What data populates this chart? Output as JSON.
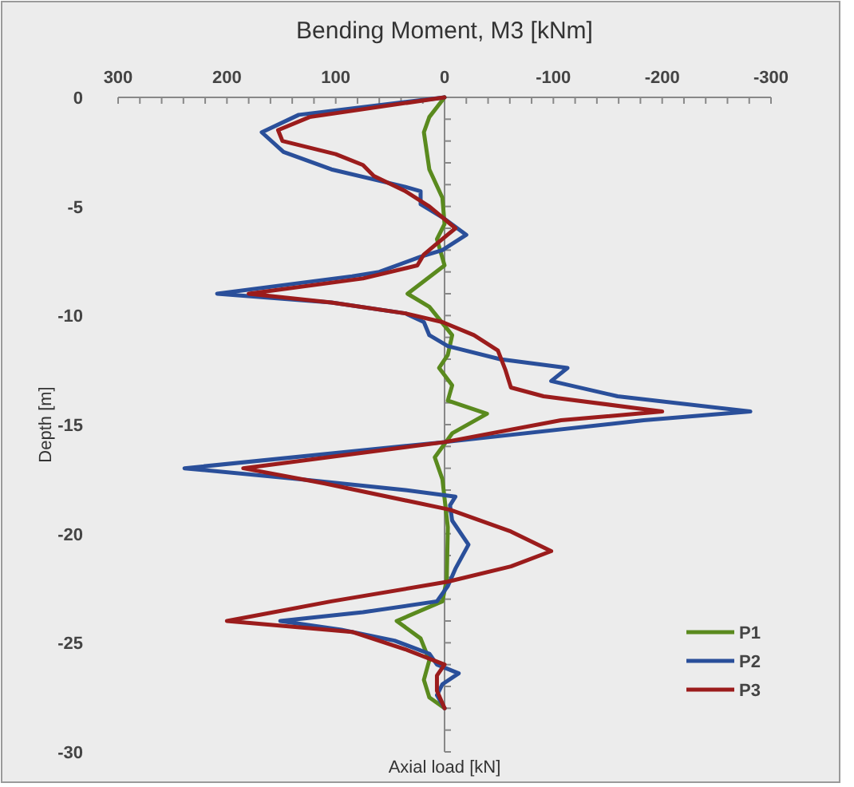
{
  "chart_data": {
    "type": "line",
    "title": "Bending Moment, M3 [kNm]",
    "xlabel": "Axial load [kN]",
    "ylabel": "Depth [m]",
    "xlim": [
      300,
      -300
    ],
    "xticks": [
      300,
      {
        "value": 280,
        "label": null
      },
      {
        "value": 260,
        "label": null
      },
      {
        "value": 240,
        "label": null
      },
      {
        "value": 220,
        "label": null
      },
      200,
      {
        "value": 180,
        "label": null
      },
      {
        "value": 160,
        "label": null
      },
      {
        "value": 140,
        "label": null
      },
      {
        "value": 120,
        "label": null
      },
      100,
      {
        "value": 80,
        "label": null
      },
      {
        "value": 60,
        "label": null
      },
      {
        "value": 40,
        "label": null
      },
      {
        "value": 20,
        "label": null
      },
      0,
      {
        "value": -20,
        "label": null
      },
      {
        "value": -40,
        "label": null
      },
      {
        "value": -60,
        "label": null
      },
      {
        "value": -80,
        "label": null
      },
      -100,
      {
        "value": -120,
        "label": null
      },
      {
        "value": -140,
        "label": null
      },
      {
        "value": -160,
        "label": null
      },
      {
        "value": -180,
        "label": null
      },
      -200,
      {
        "value": -220,
        "label": null
      },
      {
        "value": -240,
        "label": null
      },
      {
        "value": -260,
        "label": null
      },
      {
        "value": -280,
        "label": null
      },
      -300
    ],
    "ylim": [
      -30,
      0
    ],
    "yticks": [
      0,
      {
        "value": -1,
        "label": null
      },
      {
        "value": -2,
        "label": null
      },
      {
        "value": -3,
        "label": null
      },
      {
        "value": -4,
        "label": null
      },
      -5,
      {
        "value": -6,
        "label": null
      },
      {
        "value": -7,
        "label": null
      },
      {
        "value": -8,
        "label": null
      },
      {
        "value": -9,
        "label": null
      },
      -10,
      {
        "value": -11,
        "label": null
      },
      {
        "value": -12,
        "label": null
      },
      {
        "value": -13,
        "label": null
      },
      {
        "value": -14,
        "label": null
      },
      -15,
      {
        "value": -16,
        "label": null
      },
      {
        "value": -17,
        "label": null
      },
      {
        "value": -18,
        "label": null
      },
      {
        "value": -19,
        "label": null
      },
      -20,
      {
        "value": -21,
        "label": null
      },
      {
        "value": -22,
        "label": null
      },
      {
        "value": -23,
        "label": null
      },
      {
        "value": -24,
        "label": null
      },
      -25,
      {
        "value": -26,
        "label": null
      },
      {
        "value": -27,
        "label": null
      },
      {
        "value": -28,
        "label": null
      },
      {
        "value": -29,
        "label": null
      },
      -30
    ],
    "legend": "bottom right",
    "marker": "none",
    "line_style": "solid",
    "series": [
      {
        "name": "P1",
        "color": "#5a8a1e",
        "x": [
          0,
          14,
          19,
          14,
          2,
          0,
          7,
          0,
          34,
          14,
          -7,
          -3,
          5,
          -7,
          -3,
          -39,
          -7,
          9,
          2,
          -3,
          -2,
          2,
          44,
          22,
          14,
          19,
          14,
          0
        ],
        "values": [
          0,
          -0.9,
          -1.6,
          -3.3,
          -4.6,
          -5.8,
          -6.5,
          -7.7,
          -9.0,
          -9.6,
          -10.9,
          -11.8,
          -12.4,
          -13.2,
          -13.9,
          -14.5,
          -15.4,
          -16.5,
          -17.5,
          -19.7,
          -22.1,
          -23.1,
          -24.0,
          -24.8,
          -25.8,
          -26.7,
          -27.5,
          -28.0
        ]
      },
      {
        "name": "P2",
        "color": "#2a4f9a",
        "x": [
          0,
          134,
          168,
          148,
          104,
          36,
          22,
          22,
          2,
          -20,
          2,
          22,
          60,
          85,
          209,
          104,
          36,
          19,
          14,
          -3,
          -51,
          -113,
          -98,
          -159,
          -281,
          -183,
          0,
          239,
          134,
          36,
          -10,
          -5,
          -7,
          -22,
          -10,
          -3,
          7,
          75,
          151,
          95,
          46,
          14,
          7,
          -13,
          2,
          7,
          0
        ],
        "values": [
          0,
          -0.8,
          -1.6,
          -2.5,
          -3.3,
          -4.1,
          -4.3,
          -4.9,
          -5.5,
          -6.3,
          -7.0,
          -7.3,
          -8.0,
          -8.2,
          -9.0,
          -9.4,
          -9.9,
          -10.3,
          -10.9,
          -11.4,
          -12.0,
          -12.4,
          -13.0,
          -13.7,
          -14.4,
          -14.8,
          -15.8,
          -17.0,
          -17.5,
          -18.0,
          -18.3,
          -18.7,
          -19.4,
          -20.5,
          -21.6,
          -22.4,
          -23.1,
          -23.6,
          -24.0,
          -24.4,
          -24.9,
          -25.5,
          -26.0,
          -26.4,
          -26.9,
          -27.4,
          -28.0
        ]
      },
      {
        "name": "P3",
        "color": "#9b1c1c",
        "x": [
          0,
          124,
          153,
          149,
          100,
          75,
          65,
          36,
          14,
          -10,
          7,
          19,
          25,
          75,
          180,
          104,
          36,
          2,
          -27,
          -49,
          -56,
          -61,
          -91,
          -200,
          -107,
          0,
          185,
          110,
          -5,
          -61,
          -98,
          -61,
          -3,
          104,
          200,
          85,
          36,
          0,
          7,
          7,
          0
        ],
        "values": [
          0,
          -0.9,
          -1.5,
          -2.0,
          -2.6,
          -3.1,
          -3.6,
          -4.3,
          -5.0,
          -6.0,
          -6.7,
          -7.2,
          -7.7,
          -8.3,
          -9.0,
          -9.4,
          -9.9,
          -10.3,
          -10.9,
          -11.6,
          -12.5,
          -13.3,
          -13.7,
          -14.4,
          -14.8,
          -15.8,
          -17.0,
          -17.7,
          -18.9,
          -19.9,
          -20.8,
          -21.5,
          -22.2,
          -23.1,
          -24.0,
          -24.5,
          -25.3,
          -26.0,
          -26.5,
          -27.2,
          -28.0
        ]
      }
    ]
  }
}
